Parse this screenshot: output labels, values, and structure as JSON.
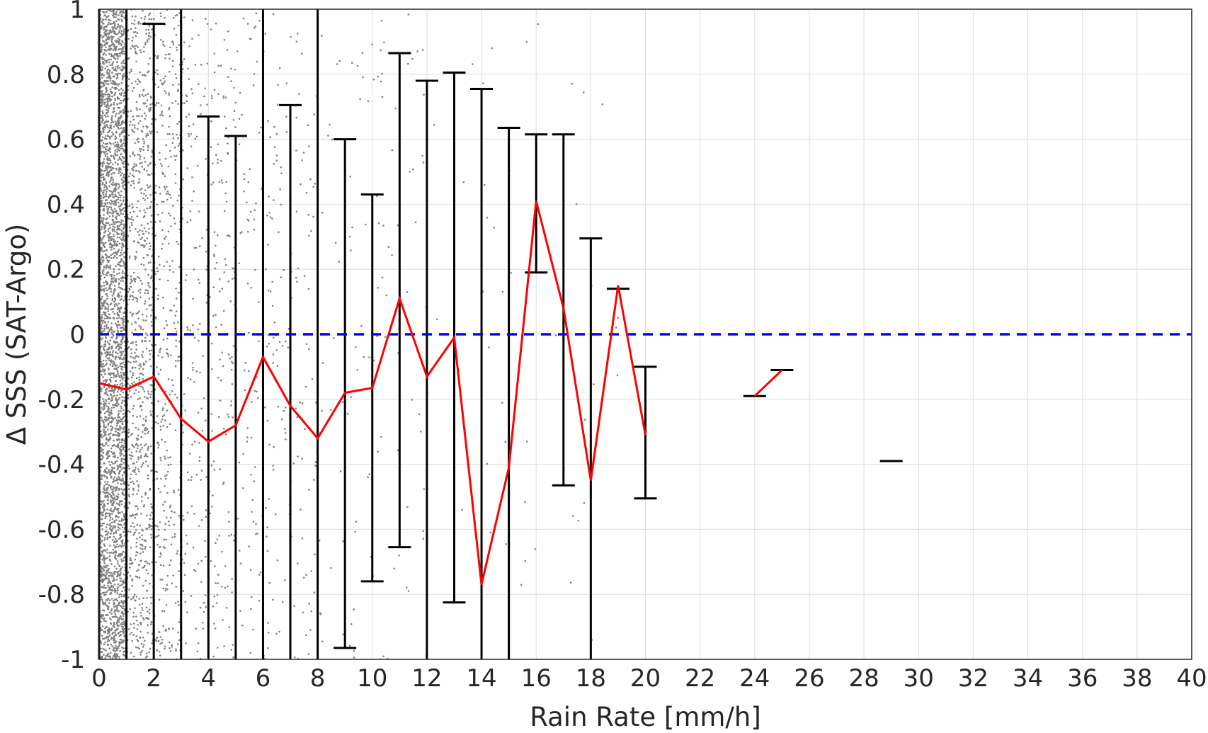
{
  "chart_data": {
    "type": "scatter",
    "xlabel": "Rain Rate [mm/h]",
    "ylabel": "Δ SSS (SAT-Argo)",
    "xlim": [
      0,
      40
    ],
    "ylim": [
      -1,
      1
    ],
    "xticks": [
      "0",
      "2",
      "4",
      "6",
      "8",
      "10",
      "12",
      "14",
      "16",
      "18",
      "20",
      "22",
      "24",
      "26",
      "28",
      "30",
      "32",
      "34",
      "36",
      "38",
      "40"
    ],
    "yticks": [
      "-1",
      "-0.8",
      "-0.6",
      "-0.4",
      "-0.2",
      "0",
      "0.2",
      "0.4",
      "0.6",
      "0.8",
      "1"
    ],
    "grid": true,
    "reference_line": {
      "y": 0,
      "style": "dashed",
      "color": "#0000ff"
    },
    "mean_line": {
      "color": "#ff0000",
      "segments": [
        [
          [
            0,
            -0.15
          ],
          [
            1,
            -0.17
          ],
          [
            2,
            -0.13
          ],
          [
            3,
            -0.26
          ],
          [
            4,
            -0.33
          ],
          [
            5,
            -0.28
          ],
          [
            6,
            -0.07
          ],
          [
            7,
            -0.22
          ],
          [
            8,
            -0.32
          ],
          [
            9,
            -0.18
          ],
          [
            10,
            -0.165
          ],
          [
            11,
            0.11
          ],
          [
            12,
            -0.13
          ],
          [
            13,
            -0.01
          ],
          [
            14,
            -0.77
          ],
          [
            15,
            -0.41
          ],
          [
            16,
            0.41
          ],
          [
            17,
            0.08
          ],
          [
            18,
            -0.45
          ],
          [
            19,
            0.15
          ],
          [
            20,
            -0.31
          ]
        ],
        [
          [
            24,
            -0.19
          ],
          [
            25,
            -0.11
          ]
        ]
      ]
    },
    "error_bars": {
      "color": "#000000",
      "items": [
        {
          "x": 0,
          "low": -1.2,
          "high": 1.2
        },
        {
          "x": 1,
          "low": -1.2,
          "high": 1.2
        },
        {
          "x": 2,
          "low": -1.2,
          "high": 0.955
        },
        {
          "x": 3,
          "low": -1.2,
          "high": 1.2
        },
        {
          "x": 4,
          "low": -1.2,
          "high": 0.67
        },
        {
          "x": 5,
          "low": -1.2,
          "high": 0.61
        },
        {
          "x": 6,
          "low": -1.2,
          "high": 1.2
        },
        {
          "x": 7,
          "low": -1.2,
          "high": 0.705
        },
        {
          "x": 8,
          "low": -1.2,
          "high": 1.2
        },
        {
          "x": 9,
          "low": -0.965,
          "high": 0.6
        },
        {
          "x": 10,
          "low": -0.76,
          "high": 0.43
        },
        {
          "x": 11,
          "low": -0.655,
          "high": 0.865
        },
        {
          "x": 12,
          "low": -1.2,
          "high": 0.78
        },
        {
          "x": 13,
          "low": -0.825,
          "high": 0.805
        },
        {
          "x": 14,
          "low": -1.2,
          "high": 0.755
        },
        {
          "x": 15,
          "low": -1.2,
          "high": 0.635
        },
        {
          "x": 16,
          "low": 0.19,
          "high": 0.615
        },
        {
          "x": 17,
          "low": -0.465,
          "high": 0.615
        },
        {
          "x": 18,
          "low": -1.2,
          "high": 0.295
        },
        {
          "x": 19,
          "low": 0.14,
          "high": 0.14
        },
        {
          "x": 20,
          "low": -0.505,
          "high": -0.1
        },
        {
          "x": 24,
          "low": -0.19,
          "high": -0.19
        },
        {
          "x": 25,
          "low": -0.11,
          "high": -0.11
        },
        {
          "x": 29,
          "low": -0.39,
          "high": -0.39
        }
      ]
    },
    "scatter_points": {
      "color": "#808080",
      "description_density": [
        {
          "x_range": [
            0,
            1
          ],
          "count": 3200
        },
        {
          "x_range": [
            1,
            2
          ],
          "count": 900
        },
        {
          "x_range": [
            2,
            3
          ],
          "count": 420
        },
        {
          "x_range": [
            3,
            5
          ],
          "count": 330
        },
        {
          "x_range": [
            5,
            8
          ],
          "count": 250
        },
        {
          "x_range": [
            8,
            12
          ],
          "count": 110
        },
        {
          "x_range": [
            12,
            19
          ],
          "count": 45
        }
      ]
    }
  }
}
